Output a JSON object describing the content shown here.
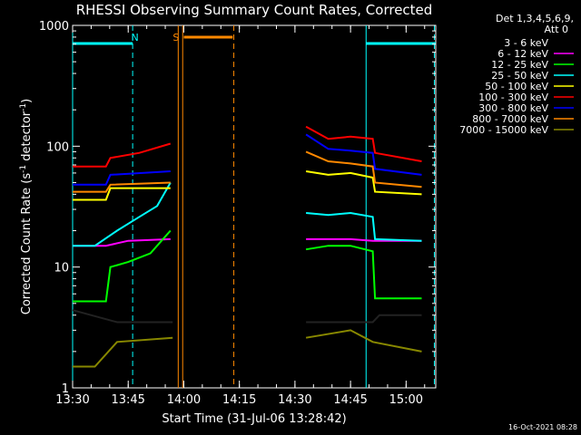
{
  "chart_data": {
    "type": "line",
    "title": "RHESSI Observing Summary Count Rates, Corrected",
    "xlabel": "Start Time (31-Jul-06 13:28:42)",
    "ylabel_main": "Corrected Count Rate (s",
    "ylabel_sup1": "-1",
    "ylabel_mid": " detector",
    "ylabel_sup2": "-1",
    "ylabel_end": ")",
    "y_scale": "log",
    "ylim": [
      1,
      1000
    ],
    "xlim_minutes": [
      13.5,
      15.1333
    ],
    "x_ticks": [
      {
        "t": 13.5,
        "label": "13:30"
      },
      {
        "t": 13.75,
        "label": "13:45"
      },
      {
        "t": 14.0,
        "label": "14:00"
      },
      {
        "t": 14.25,
        "label": "14:15"
      },
      {
        "t": 14.5,
        "label": "14:30"
      },
      {
        "t": 14.75,
        "label": "14:45"
      },
      {
        "t": 15.0,
        "label": "15:00"
      }
    ],
    "y_ticks": [
      {
        "v": 1,
        "label": "1"
      },
      {
        "v": 10,
        "label": "10"
      },
      {
        "v": 100,
        "label": "100"
      },
      {
        "v": 1000,
        "label": "1000"
      }
    ],
    "legend_header": [
      "Det 1,3,4,5,6,9,",
      "Att 0"
    ],
    "legend_position": "right",
    "timestamp": "16-Oct-2021 08:28",
    "grid": false,
    "annotations": [
      {
        "label": "N",
        "color": "#00ffff",
        "t": 13.78
      },
      {
        "label": "S",
        "color": "#ff8800",
        "t": 13.965
      }
    ],
    "series": [
      {
        "name": "3 - 6 keV",
        "color": "#000000",
        "points": [
          [
            13.5,
            4.4
          ],
          [
            13.7,
            3.5
          ],
          [
            13.95,
            3.5
          ],
          [
            14.55,
            3.5
          ],
          [
            14.75,
            3.5
          ],
          [
            14.85,
            3.5
          ],
          [
            14.88,
            4.0
          ],
          [
            15.07,
            4.0
          ]
        ]
      },
      {
        "name": "6 - 12 keV",
        "color": "#ff00ff",
        "points": [
          [
            13.5,
            15
          ],
          [
            13.65,
            15
          ],
          [
            13.75,
            16.5
          ],
          [
            13.94,
            17
          ],
          [
            14.55,
            17
          ],
          [
            14.75,
            17
          ],
          [
            14.85,
            16.5
          ],
          [
            15.07,
            16.5
          ]
        ]
      },
      {
        "name": "12 - 25 keV",
        "color": "#00ff00",
        "points": [
          [
            13.5,
            5.2
          ],
          [
            13.65,
            5.2
          ],
          [
            13.67,
            10
          ],
          [
            13.75,
            11
          ],
          [
            13.85,
            13
          ],
          [
            13.94,
            20
          ],
          [
            14.55,
            14
          ],
          [
            14.65,
            15
          ],
          [
            14.75,
            15
          ],
          [
            14.85,
            13.5
          ],
          [
            14.86,
            5.5
          ],
          [
            15.07,
            5.5
          ]
        ]
      },
      {
        "name": "25 - 50 keV",
        "color": "#00ffff",
        "points": [
          [
            13.5,
            15
          ],
          [
            13.6,
            15
          ],
          [
            13.7,
            20
          ],
          [
            13.8,
            26
          ],
          [
            13.88,
            32
          ],
          [
            13.94,
            50
          ],
          [
            14.55,
            28
          ],
          [
            14.65,
            27
          ],
          [
            14.75,
            28
          ],
          [
            14.85,
            26
          ],
          [
            14.86,
            17
          ],
          [
            15.07,
            16.5
          ]
        ]
      },
      {
        "name": "50 - 100 keV",
        "color": "#ffff00",
        "points": [
          [
            13.5,
            36
          ],
          [
            13.65,
            36
          ],
          [
            13.67,
            45
          ],
          [
            13.94,
            45
          ],
          [
            14.55,
            62
          ],
          [
            14.65,
            58
          ],
          [
            14.75,
            60
          ],
          [
            14.85,
            55
          ],
          [
            14.86,
            42
          ],
          [
            15.07,
            40
          ]
        ]
      },
      {
        "name": "100 - 300 keV",
        "color": "#ff0000",
        "points": [
          [
            13.5,
            68
          ],
          [
            13.65,
            68
          ],
          [
            13.67,
            80
          ],
          [
            13.8,
            88
          ],
          [
            13.94,
            105
          ],
          [
            14.55,
            145
          ],
          [
            14.65,
            115
          ],
          [
            14.75,
            120
          ],
          [
            14.85,
            115
          ],
          [
            14.86,
            88
          ],
          [
            15.07,
            75
          ]
        ]
      },
      {
        "name": "300 - 800 keV",
        "color": "#0000ff",
        "points": [
          [
            13.5,
            48
          ],
          [
            13.65,
            48
          ],
          [
            13.67,
            58
          ],
          [
            13.94,
            62
          ],
          [
            14.55,
            125
          ],
          [
            14.65,
            95
          ],
          [
            14.75,
            92
          ],
          [
            14.85,
            88
          ],
          [
            14.86,
            65
          ],
          [
            15.07,
            58
          ]
        ]
      },
      {
        "name": "800 - 7000 keV",
        "color": "#ff8800",
        "points": [
          [
            13.5,
            42
          ],
          [
            13.65,
            42
          ],
          [
            13.67,
            48
          ],
          [
            13.94,
            50
          ],
          [
            14.55,
            90
          ],
          [
            14.65,
            75
          ],
          [
            14.75,
            72
          ],
          [
            14.85,
            68
          ],
          [
            14.86,
            50
          ],
          [
            15.07,
            46
          ]
        ]
      },
      {
        "name": "7000 - 15000 keV",
        "color": "#888800",
        "points": [
          [
            13.5,
            1.5
          ],
          [
            13.6,
            1.5
          ],
          [
            13.7,
            2.4
          ],
          [
            13.95,
            2.6
          ],
          [
            14.55,
            2.6
          ],
          [
            14.75,
            3.0
          ],
          [
            14.85,
            2.4
          ],
          [
            15.07,
            2.0
          ]
        ]
      }
    ]
  }
}
